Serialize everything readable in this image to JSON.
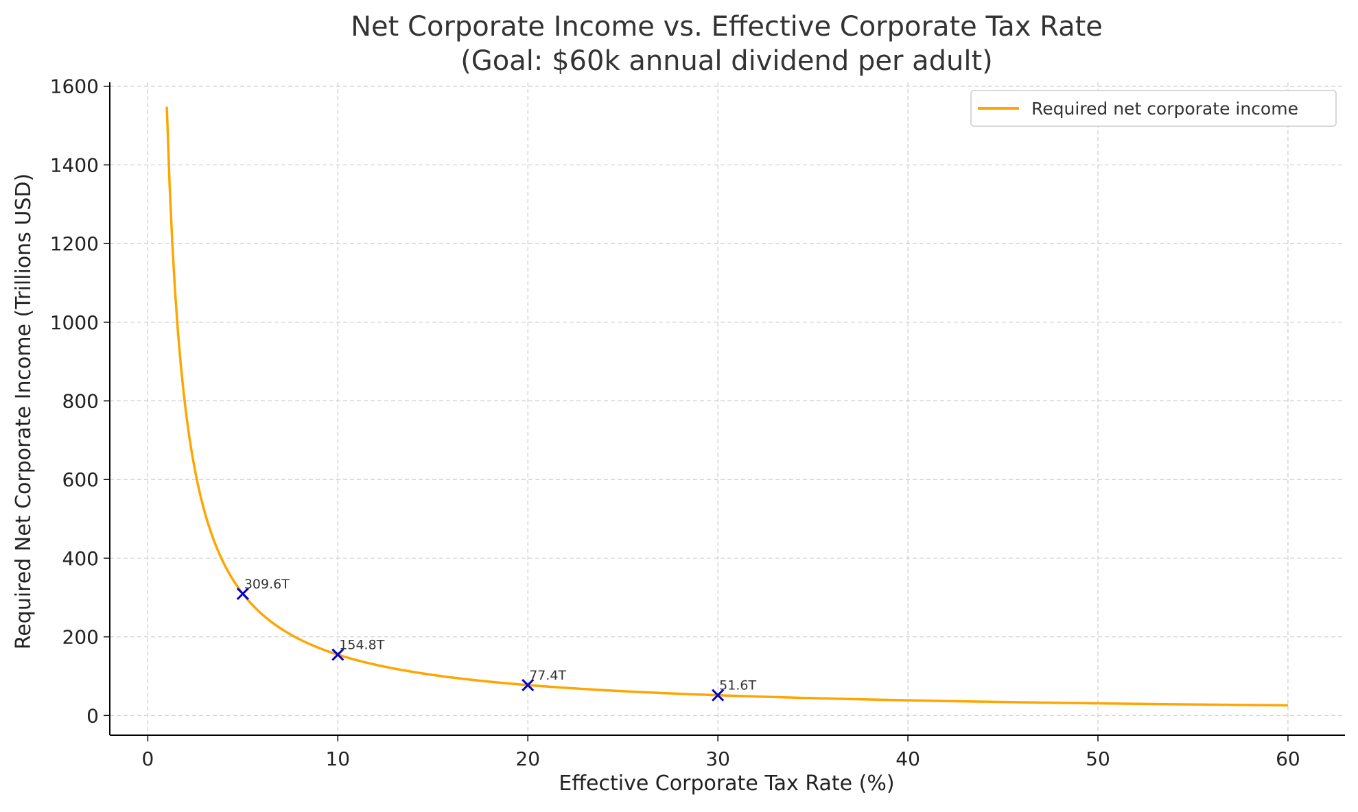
{
  "chart_data": {
    "type": "line",
    "title": "Net Corporate Income vs. Effective Corporate Tax Rate",
    "subtitle": "(Goal: $60k annual dividend per adult)",
    "xlabel": "Effective Corporate Tax Rate (%)",
    "ylabel": "Required Net Corporate Income (Trillions USD)",
    "xlim": [
      -2,
      63
    ],
    "ylim": [
      -50,
      1610
    ],
    "xticks": [
      0,
      10,
      20,
      30,
      40,
      50,
      60
    ],
    "yticks": [
      0,
      200,
      400,
      600,
      800,
      1000,
      1200,
      1400,
      1600
    ],
    "grid": true,
    "legend_position": "top-right",
    "series": [
      {
        "name": "Required net corporate income",
        "color": "#FFA500",
        "formula_constant": 1548,
        "x_range": [
          1,
          60
        ]
      }
    ],
    "markers": {
      "color": "#0000CC",
      "symbol": "x",
      "points": [
        {
          "x": 5,
          "y": 309.6,
          "label": "309.6T"
        },
        {
          "x": 10,
          "y": 154.8,
          "label": "154.8T"
        },
        {
          "x": 20,
          "y": 77.4,
          "label": "77.4T"
        },
        {
          "x": 30,
          "y": 51.6,
          "label": "51.6T"
        }
      ]
    }
  }
}
